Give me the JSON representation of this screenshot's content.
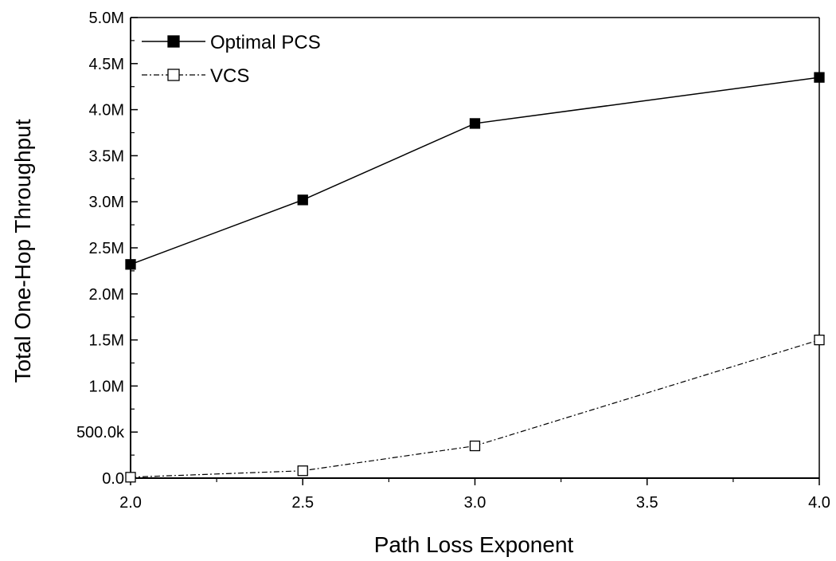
{
  "chart_data": {
    "type": "line",
    "title": "",
    "xlabel": "Path Loss Exponent",
    "ylabel": "Total One-Hop Throughput",
    "xlim": [
      2.0,
      4.0
    ],
    "ylim": [
      0,
      5000000
    ],
    "x_ticks": [
      2.0,
      2.5,
      3.0,
      3.5,
      4.0
    ],
    "x_tick_labels": [
      "2.0",
      "2.5",
      "3.0",
      "3.5",
      "4.0"
    ],
    "y_ticks": [
      0,
      500000,
      1000000,
      1500000,
      2000000,
      2500000,
      3000000,
      3500000,
      4000000,
      4500000,
      5000000
    ],
    "y_tick_labels": [
      "0.0",
      "500.0k",
      "1.0M",
      "1.5M",
      "2.0M",
      "2.5M",
      "3.0M",
      "3.5M",
      "4.0M",
      "4.5M",
      "5.0M"
    ],
    "grid": false,
    "legend_position": "top-left",
    "x": [
      2.0,
      2.5,
      3.0,
      4.0
    ],
    "series": [
      {
        "name": "Optimal PCS",
        "values": [
          2320000,
          3020000,
          3850000,
          4350000
        ],
        "marker": "filled-square",
        "line": "solid",
        "color": "#000000"
      },
      {
        "name": "VCS",
        "values": [
          10000,
          80000,
          350000,
          1500000
        ],
        "marker": "open-square",
        "line": "dash-dot",
        "color": "#000000"
      }
    ]
  }
}
